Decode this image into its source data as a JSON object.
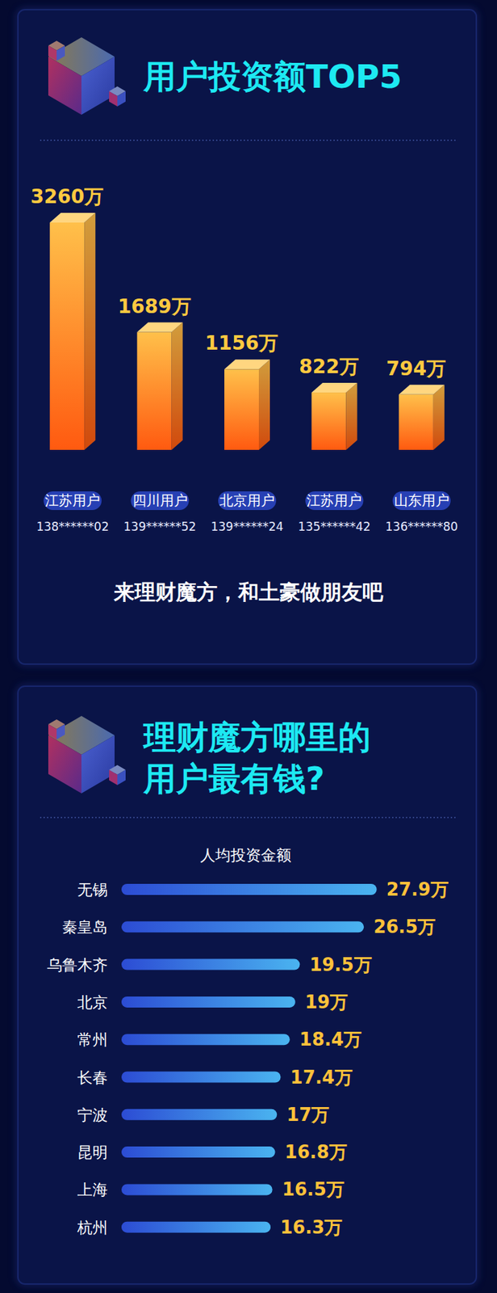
{
  "chart_data": [
    {
      "type": "bar",
      "title": "用户投资额TOP5",
      "categories": [
        "江苏用户",
        "四川用户",
        "北京用户",
        "江苏用户",
        "山东用户"
      ],
      "user_ids": [
        "138******02",
        "139******52",
        "139******24",
        "135******42",
        "136******80"
      ],
      "values": [
        3260,
        1689,
        1156,
        822,
        794
      ],
      "value_labels": [
        "3260万",
        "1689万",
        "1156万",
        "822万",
        "794万"
      ],
      "data_labels": true,
      "color": "#ff5a10",
      "ylim": [
        0,
        3260
      ],
      "tick_labels": "x",
      "annotation": "来理财魔方，和土豪做朋友吧"
    },
    {
      "type": "bar",
      "orientation": "horizontal",
      "title": "理财魔方哪里的\n用户最有钱?",
      "subtitle": "人均投资金额",
      "categories": [
        "无锡",
        "秦皇岛",
        "乌鲁木齐",
        "北京",
        "常州",
        "长春",
        "宁波",
        "昆明",
        "上海",
        "杭州"
      ],
      "values": [
        27.9,
        26.5,
        19.5,
        19,
        18.4,
        17.4,
        17,
        16.8,
        16.5,
        16.3
      ],
      "value_labels": [
        "27.9万",
        "26.5万",
        "19.5万",
        "19万",
        "18.4万",
        "17.4万",
        "17万",
        "16.8万",
        "16.5万",
        "16.3万"
      ],
      "data_labels": true,
      "color": "#4ab4f0",
      "xlim": [
        0,
        28
      ],
      "tick_labels": "y"
    }
  ]
}
